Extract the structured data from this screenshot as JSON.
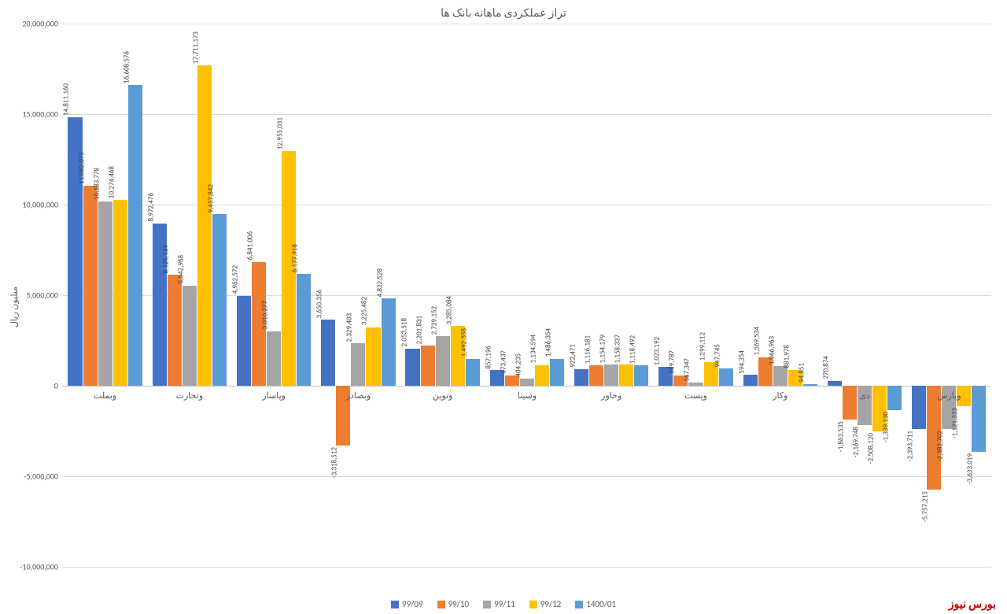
{
  "chart": {
    "type": "bar",
    "title": "تراز عملکردی ماهانه بانک ها",
    "y_axis_label": "میلیون ریال",
    "background_color": "#ffffff",
    "grid_color": "#d9d9d9",
    "text_color": "#595959",
    "title_fontsize": 14,
    "label_fontsize": 11,
    "tick_fontsize": 10,
    "data_label_fontsize": 9,
    "ylim": [
      -10000000,
      20000000
    ],
    "ytick_step": 5000000,
    "yticks": [
      -10000000,
      -5000000,
      0,
      5000000,
      10000000,
      15000000,
      20000000
    ],
    "ytick_labels": [
      "-10,000,000",
      "-5,000,000",
      "0",
      "5,000,000",
      "10,000,000",
      "15,000,000",
      "20,000,000"
    ],
    "series": [
      {
        "name": "99/09",
        "color": "#4472c4"
      },
      {
        "name": "99/10",
        "color": "#ed7d31"
      },
      {
        "name": "99/11",
        "color": "#a5a5a5"
      },
      {
        "name": "99/12",
        "color": "#ffc000"
      },
      {
        "name": "1400/01",
        "color": "#5b9bd5"
      }
    ],
    "categories": [
      {
        "name": "وبملت",
        "values": [
          14811160,
          11062075,
          10183778,
          10274468,
          16608576
        ],
        "labels": [
          "14,811,160",
          "11,062,075",
          "10,183,778",
          "10,274,468",
          "16,608,576"
        ]
      },
      {
        "name": "وتجارت",
        "values": [
          8972476,
          6125139,
          5542968,
          17711173,
          9457842
        ],
        "labels": [
          "8,972,476",
          "6,125,139",
          "5,542,968",
          "17,711,173",
          "9,457,842"
        ]
      },
      {
        "name": "وپاسار",
        "values": [
          4962572,
          6841006,
          3010277,
          12955031,
          6177918
        ],
        "labels": [
          "4,962,572",
          "6,841,006",
          "3,010,277",
          "12,955,031",
          "6,177,918"
        ]
      },
      {
        "name": "وبصادر",
        "values": [
          3650356,
          -3318512,
          2329403,
          3225482,
          4822528
        ],
        "labels": [
          "3,650,356",
          "-3,318,512",
          "2,329,403",
          "3,225,482",
          "4,822,528"
        ]
      },
      {
        "name": "ونوین",
        "values": [
          2053518,
          2201831,
          2729152,
          3285084,
          1492358
        ],
        "labels": [
          "2,053,518",
          "2,201,831",
          "2,729,152",
          "3,285,084",
          "1,492,358"
        ]
      },
      {
        "name": "وسینا",
        "values": [
          857196,
          573437,
          404235,
          1134594,
          1486354
        ],
        "labels": [
          "857,196",
          "573,437",
          "404,235",
          "1,134,594",
          "1,486,354"
        ]
      },
      {
        "name": "وخاور",
        "values": [
          922471,
          1116181,
          1154179,
          1158337,
          1118492
        ],
        "labels": [
          "922,471",
          "1,116,181",
          "1,154,179",
          "1,158,337",
          "1,118,492"
        ]
      },
      {
        "name": "وپست",
        "values": [
          1023192,
          569787,
          167347,
          1299112,
          947745
        ],
        "labels": [
          "1,023,192",
          "569,787",
          "167,347",
          "1,299,112",
          "947,745"
        ]
      },
      {
        "name": "وکار",
        "values": [
          594354,
          1569534,
          1066963,
          881978,
          94851
        ],
        "labels": [
          "594,354",
          "1,569,534",
          "1,066,963",
          "881,978",
          "94,851"
        ]
      },
      {
        "name": "دی",
        "values": [
          270874,
          -1863535,
          -2169748,
          -2508120,
          -1339130
        ],
        "labels": [
          "270,874",
          "-1,863,535",
          "-2,169,748",
          "-2,508,120",
          "-1,339,130"
        ]
      },
      {
        "name": "وپارس",
        "values": [
          -2393711,
          -5757215,
          -2382702,
          -1121333,
          -3633019
        ],
        "labels": [
          "-2,393,711",
          "-5,757,215",
          "-2,382,702",
          "-1,121,333",
          "-3,633,019"
        ]
      }
    ]
  },
  "watermark": {
    "text": "بورس نیوز",
    "color": "#c00000"
  }
}
